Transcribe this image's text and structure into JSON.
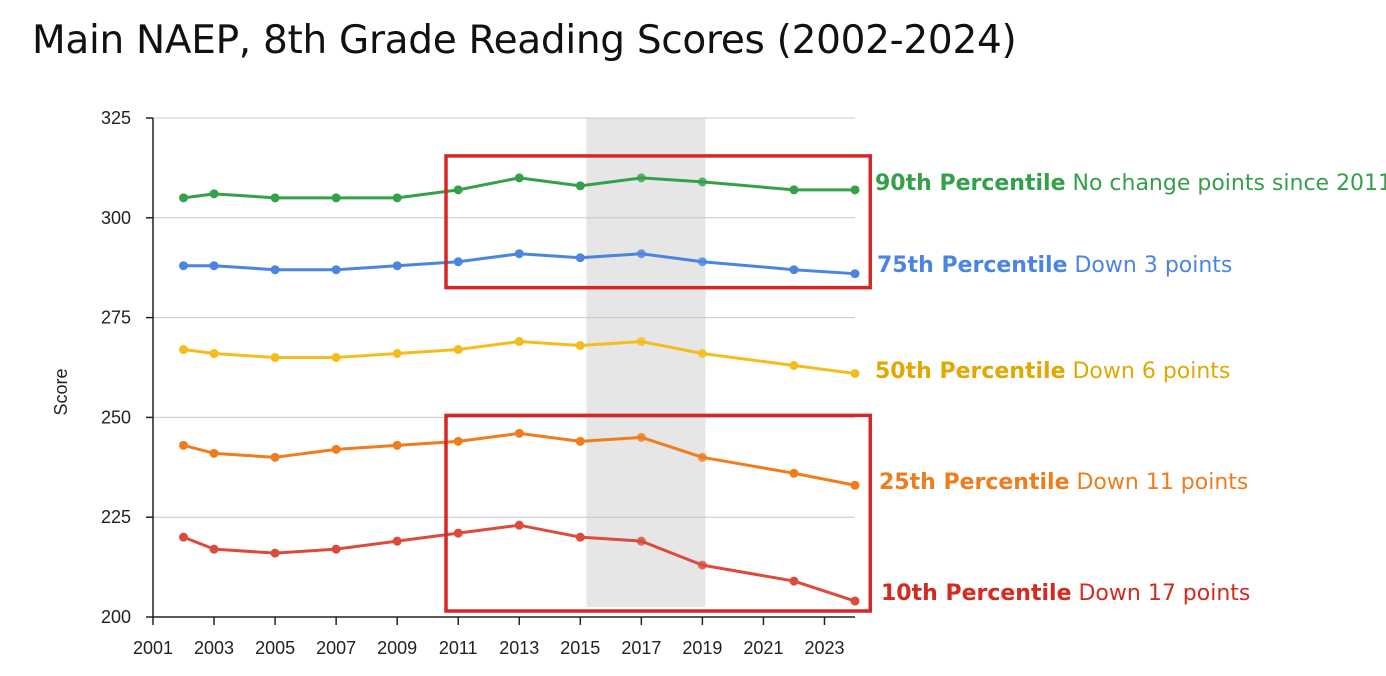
{
  "title": "Main NAEP, 8th Grade Reading Scores (2002-2024)",
  "chart_data": {
    "type": "line",
    "title": "Main NAEP, 8th Grade Reading Scores (2002-2024)",
    "xlabel": "",
    "ylabel": "Score",
    "xlim": [
      2001,
      2024
    ],
    "ylim": [
      200,
      325
    ],
    "x_ticks": [
      2001,
      2003,
      2005,
      2007,
      2009,
      2011,
      2013,
      2015,
      2017,
      2019,
      2021,
      2023
    ],
    "y_ticks": [
      200,
      225,
      250,
      275,
      300,
      325
    ],
    "grid": true,
    "shaded_range": [
      2015.2,
      2019.1
    ],
    "highlight_boxes": [
      {
        "x": [
          2010.6,
          2024.5
        ],
        "y": [
          282.5,
          315.5
        ],
        "color": "#d62728"
      },
      {
        "x": [
          2010.6,
          2024.5
        ],
        "y": [
          201.5,
          250.5
        ],
        "color": "#d62728"
      }
    ],
    "x": [
      2002,
      2003,
      2005,
      2007,
      2009,
      2011,
      2013,
      2015,
      2017,
      2019,
      2022,
      2024
    ],
    "series": [
      {
        "name": "90th Percentile",
        "color": "#34a04a",
        "values": [
          305,
          306,
          305,
          305,
          305,
          307,
          310,
          308,
          310,
          309,
          307,
          307
        ],
        "annotation": {
          "label": "90th Percentile",
          "text": "No change points since 2011",
          "color": "#34a04a"
        }
      },
      {
        "name": "75th Percentile",
        "color": "#4a86e0",
        "values": [
          288,
          288,
          287,
          287,
          288,
          289,
          291,
          290,
          291,
          289,
          287,
          286
        ],
        "annotation": {
          "label": "75th Percentile",
          "text": "Down 3 points",
          "color": "#4a86e0"
        }
      },
      {
        "name": "50th Percentile",
        "color": "#f4bc1c",
        "values": [
          267,
          266,
          265,
          265,
          266,
          267,
          269,
          268,
          269,
          266,
          263,
          261
        ],
        "annotation": {
          "label": "50th Percentile",
          "text": "Down 6 points",
          "color": "#e0a800"
        }
      },
      {
        "name": "25th Percentile",
        "color": "#f07c1c",
        "values": [
          243,
          241,
          240,
          242,
          243,
          244,
          246,
          244,
          245,
          240,
          236,
          233
        ],
        "annotation": {
          "label": "25th Percentile",
          "text": "Down 11 points",
          "color": "#ee7d1e"
        }
      },
      {
        "name": "10th Percentile",
        "color": "#dc4a3c",
        "values": [
          220,
          217,
          216,
          217,
          219,
          221,
          223,
          220,
          219,
          213,
          209,
          204
        ],
        "annotation": {
          "label": "10th Percentile",
          "text": "Down 17 points",
          "color": "#d42a20"
        }
      }
    ]
  }
}
